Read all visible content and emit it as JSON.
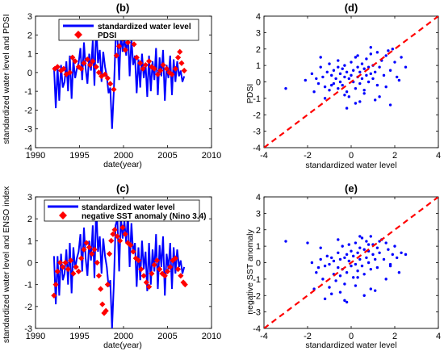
{
  "figure": {
    "panels": [
      {
        "id": "b",
        "label": "(b)",
        "xlabel": "date(year)",
        "ylabel": "standardized water level and PDSI"
      },
      {
        "id": "d",
        "label": "(d)",
        "xlabel": "standardized water level",
        "ylabel": "PDSI"
      },
      {
        "id": "c",
        "label": "(c)",
        "xlabel": "date(year)",
        "ylabel": "standardized water level and ENSO index"
      },
      {
        "id": "e",
        "label": "(e)",
        "xlabel": "standardized water level",
        "ylabel": "negative SST anomaly"
      }
    ]
  },
  "colors": {
    "water_level": "#0000ff",
    "index": "#ff0000",
    "scatter": "#0000ff",
    "diagonal": "#ff0000"
  },
  "chart_data": [
    {
      "id": "b",
      "type": "line",
      "title": "(b)",
      "xlabel": "date(year)",
      "ylabel": "standardized water level and PDSI",
      "xlim": [
        1990,
        2010
      ],
      "ylim": [
        -4,
        3
      ],
      "xticks": [
        "1990",
        "1995",
        "2000",
        "2005",
        "2010"
      ],
      "yticks": [
        "-4",
        "-3",
        "-2",
        "-1",
        "0",
        "1",
        "2",
        "3"
      ],
      "legend": "top-right",
      "series": [
        {
          "name": "standardized water level",
          "style": "line",
          "color": "#0000ff",
          "x": [
            1992.1,
            1992.3,
            1992.5,
            1992.7,
            1992.9,
            1993.1,
            1993.3,
            1993.5,
            1993.7,
            1993.9,
            1994.1,
            1994.3,
            1994.5,
            1994.7,
            1994.9,
            1995.1,
            1995.3,
            1995.5,
            1995.7,
            1995.9,
            1996.1,
            1996.3,
            1996.5,
            1996.7,
            1996.9,
            1997.1,
            1997.3,
            1997.5,
            1997.7,
            1997.9,
            1998.1,
            1998.3,
            1998.5,
            1998.7,
            1998.9,
            1999.1,
            1999.3,
            1999.5,
            1999.7,
            1999.9,
            2000.1,
            2000.3,
            2000.5,
            2000.7,
            2000.9,
            2001.1,
            2001.3,
            2001.5,
            2001.7,
            2001.9,
            2002.1,
            2002.3,
            2002.5,
            2002.7,
            2002.9,
            2003.1,
            2003.3,
            2003.5,
            2003.7,
            2003.9,
            2004.1,
            2004.3,
            2004.5,
            2004.7,
            2004.9,
            2005.1,
            2005.3,
            2005.5,
            2005.7,
            2005.9,
            2006.1,
            2006.3,
            2006.5,
            2006.7,
            2006.9
          ],
          "y": [
            0.3,
            -1.9,
            0.3,
            -1.5,
            0.4,
            -0.8,
            -0.5,
            0.6,
            -1.0,
            0.9,
            -1.4,
            0.7,
            -0.3,
            0.2,
            0.5,
            1.3,
            -0.4,
            1.6,
            0.2,
            -0.6,
            1.0,
            0.1,
            1.7,
            -0.7,
            2.6,
            0.5,
            1.2,
            -0.5,
            1.1,
            0.3,
            -0.2,
            -1.1,
            -0.8,
            -3.0,
            -1.0,
            1.7,
            2.0,
            -0.4,
            2.1,
            1.1,
            1.9,
            0.9,
            2.3,
            -0.2,
            1.8,
            0.4,
            0.9,
            -1.1,
            0.7,
            -0.8,
            1.0,
            -0.3,
            0.5,
            -1.3,
            0.9,
            -1.0,
            0.6,
            -0.4,
            1.3,
            -1.2,
            0.8,
            -0.2,
            1.2,
            -1.5,
            0.4,
            -0.3,
            0.9,
            -1.2,
            0.7,
            -0.5,
            0.6,
            -0.2,
            0.1,
            -0.5,
            -0.2
          ]
        },
        {
          "name": "PDSI",
          "style": "marker-diamond",
          "color": "#ff0000",
          "x": [
            1992.2,
            1992.5,
            1992.9,
            1993.2,
            1993.5,
            1993.9,
            1994.2,
            1994.5,
            1994.9,
            1995.2,
            1995.5,
            1995.9,
            1996.2,
            1996.5,
            1996.9,
            1997.2,
            1997.5,
            1997.9,
            1998.2,
            1998.5,
            1998.9,
            1999.2,
            1999.5,
            1999.9,
            2000.2,
            2000.5,
            2000.9,
            2001.2,
            2001.5,
            2001.9,
            2002.2,
            2002.5,
            2002.9,
            2003.2,
            2003.5,
            2003.9,
            2004.2,
            2004.5,
            2004.9,
            2005.2,
            2005.5,
            2005.9,
            2006.2,
            2006.4,
            2006.6,
            2006.9
          ],
          "y": [
            0.2,
            0.3,
            0.1,
            0.2,
            -0.1,
            0.0,
            0.8,
            0.6,
            0.3,
            0.2,
            0.5,
            0.7,
            0.4,
            0.6,
            0.3,
            0.0,
            -0.2,
            -0.1,
            -0.3,
            -0.6,
            -0.9,
            0.9,
            1.4,
            1.8,
            1.2,
            1.6,
            1.9,
            1.5,
            0.8,
            0.5,
            0.2,
            0.4,
            0.6,
            0.3,
            0.2,
            -0.1,
            0.1,
            0.4,
            0.2,
            0.0,
            -0.1,
            0.2,
            0.8,
            1.1,
            0.5,
            0.1
          ]
        }
      ]
    },
    {
      "id": "d",
      "type": "scatter",
      "title": "(d)",
      "xlabel": "standardized water level",
      "ylabel": "PDSI",
      "xlim": [
        -4,
        4
      ],
      "ylim": [
        -4,
        4
      ],
      "xticks": [
        "-4",
        "-2",
        "0",
        "2",
        "4"
      ],
      "yticks": [
        "-4",
        "-3",
        "-2",
        "-1",
        "0",
        "1",
        "2",
        "3",
        "4"
      ],
      "reference_line": {
        "style": "dashed",
        "color": "#ff0000",
        "from": [
          -4,
          -4
        ],
        "to": [
          4,
          4
        ]
      },
      "series": [
        {
          "style": "marker-dot",
          "color": "#0000ff",
          "x": [
            -3.0,
            -2.1,
            -1.8,
            -1.6,
            -1.5,
            -1.4,
            -1.3,
            -1.2,
            -1.1,
            -1.0,
            -1.0,
            -0.9,
            -0.8,
            -0.8,
            -0.7,
            -0.6,
            -0.6,
            -0.5,
            -0.5,
            -0.4,
            -0.4,
            -0.3,
            -0.3,
            -0.2,
            -0.2,
            -0.1,
            -0.1,
            0.0,
            0.0,
            0.1,
            0.1,
            0.2,
            0.2,
            0.3,
            0.3,
            0.4,
            0.4,
            0.5,
            0.5,
            0.6,
            0.6,
            0.7,
            0.7,
            0.8,
            0.8,
            0.9,
            0.9,
            1.0,
            1.0,
            1.1,
            1.2,
            1.2,
            1.3,
            1.4,
            1.5,
            1.6,
            1.7,
            1.8,
            1.9,
            2.0,
            2.1,
            2.3,
            2.5,
            -1.7,
            -1.2,
            -0.9,
            -0.3,
            0.2,
            0.6,
            1.1,
            1.6,
            2.2,
            -0.6,
            0.3,
            0.9,
            1.3,
            1.8,
            -1.4,
            -0.2,
            0.4
          ],
          "y": [
            -0.4,
            0.1,
            0.5,
            0.2,
            -0.1,
            0.9,
            0.3,
            -0.3,
            0.6,
            1.1,
            -0.5,
            0.4,
            -0.1,
            0.7,
            0.2,
            0.9,
            -0.4,
            0.5,
            0.0,
            0.8,
            -0.2,
            0.3,
            1.0,
            -0.6,
            0.6,
            0.2,
            -0.9,
            0.4,
            1.2,
            0.0,
            0.7,
            -0.4,
            1.5,
            0.3,
            0.9,
            -0.1,
            0.6,
            1.1,
            0.2,
            0.8,
            -0.5,
            0.4,
            1.4,
            0.0,
            0.9,
            0.5,
            1.7,
            0.2,
            1.0,
            0.6,
            1.8,
            -0.2,
            0.9,
            1.3,
            0.4,
            1.6,
            1.9,
            0.7,
            2.0,
            1.2,
            0.3,
            1.5,
            0.9,
            -0.6,
            -1.0,
            -0.2,
            -0.8,
            -1.3,
            -0.7,
            -1.1,
            -0.3,
            0.1,
            1.3,
            1.6,
            2.1,
            -0.9,
            -1.4,
            1.5,
            -1.6,
            -1.2
          ]
        }
      ]
    },
    {
      "id": "c",
      "type": "line",
      "title": "(c)",
      "xlabel": "date(year)",
      "ylabel": "standardized water level and ENSO index",
      "xlim": [
        1990,
        2010
      ],
      "ylim": [
        -3,
        3
      ],
      "xticks": [
        "1990",
        "1995",
        "2000",
        "2005",
        "2010"
      ],
      "yticks": [
        "-3",
        "-2",
        "-1",
        "0",
        "1",
        "2",
        "3"
      ],
      "legend": "top-right",
      "series": [
        {
          "name": "standardized water level",
          "style": "line",
          "color": "#0000ff",
          "x": [
            1992.1,
            1992.3,
            1992.5,
            1992.7,
            1992.9,
            1993.1,
            1993.3,
            1993.5,
            1993.7,
            1993.9,
            1994.1,
            1994.3,
            1994.5,
            1994.7,
            1994.9,
            1995.1,
            1995.3,
            1995.5,
            1995.7,
            1995.9,
            1996.1,
            1996.3,
            1996.5,
            1996.7,
            1996.9,
            1997.1,
            1997.3,
            1997.5,
            1997.7,
            1997.9,
            1998.1,
            1998.3,
            1998.5,
            1998.7,
            1998.9,
            1999.1,
            1999.3,
            1999.5,
            1999.7,
            1999.9,
            2000.1,
            2000.3,
            2000.5,
            2000.7,
            2000.9,
            2001.1,
            2001.3,
            2001.5,
            2001.7,
            2001.9,
            2002.1,
            2002.3,
            2002.5,
            2002.7,
            2002.9,
            2003.1,
            2003.3,
            2003.5,
            2003.7,
            2003.9,
            2004.1,
            2004.3,
            2004.5,
            2004.7,
            2004.9,
            2005.1,
            2005.3,
            2005.5,
            2005.7,
            2005.9,
            2006.1,
            2006.3,
            2006.5,
            2006.7,
            2006.9
          ],
          "y": [
            0.3,
            -1.9,
            0.3,
            -1.5,
            0.4,
            -0.8,
            -0.5,
            0.6,
            -1.0,
            0.9,
            -1.4,
            0.7,
            -0.3,
            0.2,
            0.5,
            1.3,
            -0.4,
            1.6,
            0.2,
            -0.6,
            1.0,
            0.1,
            1.7,
            -0.7,
            2.6,
            0.5,
            1.2,
            -0.5,
            1.1,
            0.3,
            -0.2,
            -1.1,
            -0.8,
            -3.0,
            -1.0,
            1.7,
            2.0,
            -0.4,
            2.1,
            1.1,
            1.9,
            0.9,
            2.3,
            -0.2,
            1.8,
            0.4,
            0.9,
            -1.1,
            0.7,
            -0.8,
            1.0,
            -0.3,
            0.5,
            -1.3,
            0.9,
            -1.0,
            0.6,
            -0.4,
            1.3,
            -1.2,
            0.8,
            -0.2,
            1.2,
            -1.5,
            0.4,
            -0.3,
            0.9,
            -1.2,
            0.7,
            -0.5,
            0.6,
            -0.2,
            0.1,
            -0.5,
            -0.2
          ]
        },
        {
          "name": "negative SST anomaly (Nino 3.4)",
          "style": "marker-diamond",
          "color": "#ff0000",
          "x": [
            1992.1,
            1992.3,
            1992.5,
            1992.8,
            1993.1,
            1993.4,
            1993.7,
            1994.0,
            1994.3,
            1994.6,
            1994.9,
            1995.2,
            1995.5,
            1995.8,
            1996.1,
            1996.4,
            1996.7,
            1997.0,
            1997.2,
            1997.4,
            1997.6,
            1997.8,
            1998.0,
            1998.2,
            1998.4,
            1998.6,
            1998.8,
            1999.0,
            1999.3,
            1999.6,
            1999.9,
            2000.2,
            2000.5,
            2000.8,
            2001.1,
            2001.4,
            2001.7,
            2002.0,
            2002.3,
            2002.6,
            2002.9,
            2003.2,
            2003.5,
            2003.8,
            2004.1,
            2004.4,
            2004.7,
            2005.0,
            2005.3,
            2005.6,
            2005.9,
            2006.2,
            2006.5,
            2006.8,
            2007.0
          ],
          "y": [
            -1.5,
            -1.0,
            -0.4,
            0.0,
            -0.2,
            0.0,
            -0.3,
            0.1,
            -0.5,
            -0.2,
            -0.4,
            0.2,
            0.6,
            0.9,
            0.7,
            0.4,
            0.6,
            0.0,
            -0.6,
            -1.2,
            -1.9,
            -2.3,
            -2.2,
            -1.0,
            0.4,
            1.0,
            1.3,
            1.5,
            1.2,
            1.0,
            1.6,
            1.3,
            0.9,
            0.8,
            0.5,
            0.2,
            0.1,
            -0.3,
            -0.6,
            -0.9,
            -1.1,
            -0.5,
            -0.1,
            0.1,
            -0.3,
            -0.5,
            -0.6,
            -0.4,
            -0.2,
            0.1,
            0.2,
            -0.3,
            -0.6,
            -0.9,
            -1.0
          ]
        }
      ]
    },
    {
      "id": "e",
      "type": "scatter",
      "title": "(e)",
      "xlabel": "standardized water level",
      "ylabel": "negative SST anomaly",
      "xlim": [
        -4,
        4
      ],
      "ylim": [
        -4,
        4
      ],
      "xticks": [
        "-4",
        "-2",
        "0",
        "2",
        "4"
      ],
      "yticks": [
        "-4",
        "-3",
        "-2",
        "-1",
        "0",
        "1",
        "2",
        "3",
        "4"
      ],
      "reference_line": {
        "style": "dashed",
        "color": "#ff0000",
        "from": [
          -4,
          -4
        ],
        "to": [
          4,
          4
        ]
      },
      "series": [
        {
          "style": "marker-dot",
          "color": "#0000ff",
          "x": [
            -3.0,
            -2.0,
            -1.8,
            -1.6,
            -1.5,
            -1.4,
            -1.3,
            -1.2,
            -1.1,
            -1.0,
            -1.0,
            -0.9,
            -0.8,
            -0.8,
            -0.7,
            -0.6,
            -0.6,
            -0.5,
            -0.5,
            -0.4,
            -0.4,
            -0.3,
            -0.3,
            -0.2,
            -0.2,
            -0.1,
            -0.1,
            0.0,
            0.0,
            0.1,
            0.1,
            0.2,
            0.2,
            0.3,
            0.3,
            0.4,
            0.4,
            0.5,
            0.5,
            0.6,
            0.6,
            0.7,
            0.7,
            0.8,
            0.8,
            0.9,
            0.9,
            1.0,
            1.0,
            1.1,
            1.2,
            1.2,
            1.3,
            1.4,
            1.5,
            1.6,
            1.7,
            1.8,
            1.9,
            2.0,
            2.1,
            2.3,
            2.5,
            -1.7,
            -1.2,
            -0.9,
            -0.3,
            0.2,
            0.6,
            1.1,
            1.6,
            2.2,
            -0.6,
            0.3,
            0.9,
            1.3,
            1.8,
            -1.4,
            -0.2,
            0.4,
            -0.5,
            0.8
          ],
          "y": [
            1.3,
            1.2,
            0.0,
            -0.6,
            -0.3,
            0.2,
            -1.0,
            -0.2,
            0.4,
            -0.1,
            -1.5,
            0.3,
            -0.7,
            0.1,
            -1.1,
            0.6,
            -0.3,
            -0.8,
            0.2,
            1.0,
            -0.4,
            0.3,
            -1.3,
            0.5,
            -0.6,
            0.1,
            1.1,
            -0.2,
            0.7,
            -0.9,
            0.4,
            1.2,
            -0.1,
            0.6,
            -0.5,
            0.9,
            0.2,
            1.5,
            -0.2,
            0.8,
            -0.7,
            0.3,
            1.3,
            0.0,
            0.7,
            1.6,
            -0.4,
            0.5,
            1.1,
            0.2,
            0.9,
            -0.3,
            0.6,
            1.4,
            0.2,
            1.2,
            0.8,
            -0.1,
            0.5,
            1.0,
            0.3,
            0.6,
            0.5,
            -1.6,
            -2.2,
            -1.9,
            -2.3,
            -1.4,
            -2.0,
            -1.7,
            -1.0,
            -0.6,
            1.4,
            -0.9,
            -1.6,
            1.3,
            -0.2,
            0.9,
            -2.4,
            1.6,
            -1.8,
            1.1
          ]
        }
      ]
    }
  ]
}
